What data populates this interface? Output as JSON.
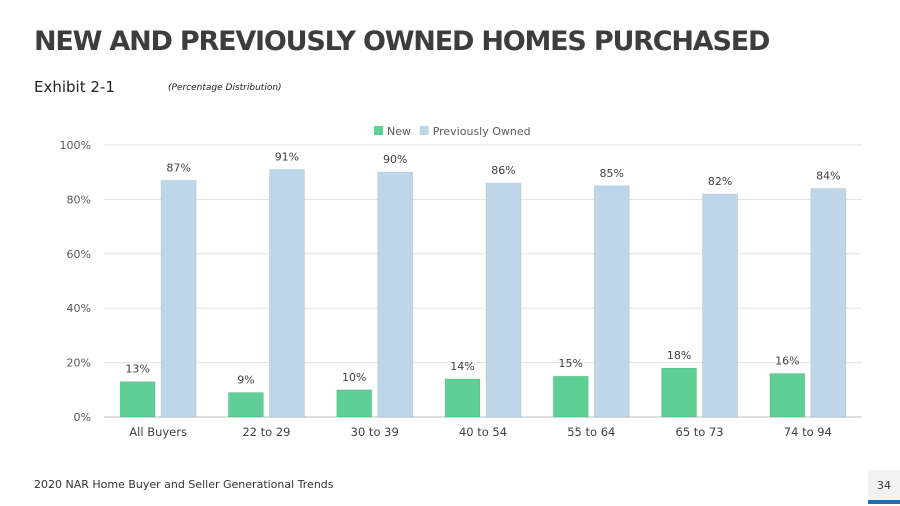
{
  "header": {
    "title": "NEW AND PREVIOUSLY OWNED HOMES PURCHASED",
    "exhibit": "Exhibit 2-1",
    "subtitle": "(Percentage Distribution)"
  },
  "footer": {
    "source": "2020 NAR Home Buyer and Seller Generational Trends",
    "page_number": "34"
  },
  "colors": {
    "new": "#5ecf95",
    "previously_owned": "#bed6ea",
    "accent": "#1f6fb5"
  },
  "chart_data": {
    "type": "bar",
    "categories": [
      "All Buyers",
      "22 to 29",
      "30 to 39",
      "40 to 54",
      "55 to 64",
      "65 to 73",
      "74 to 94"
    ],
    "series": [
      {
        "name": "New",
        "values": [
          13,
          9,
          10,
          14,
          15,
          18,
          16
        ]
      },
      {
        "name": "Previously Owned",
        "values": [
          87,
          91,
          90,
          86,
          85,
          82,
          84
        ]
      }
    ],
    "ylim": [
      0,
      100
    ],
    "yticks": [
      "0%",
      "20%",
      "40%",
      "60%",
      "80%",
      "100%"
    ],
    "value_suffix": "%",
    "grid": true,
    "legend_position": "top-center"
  }
}
